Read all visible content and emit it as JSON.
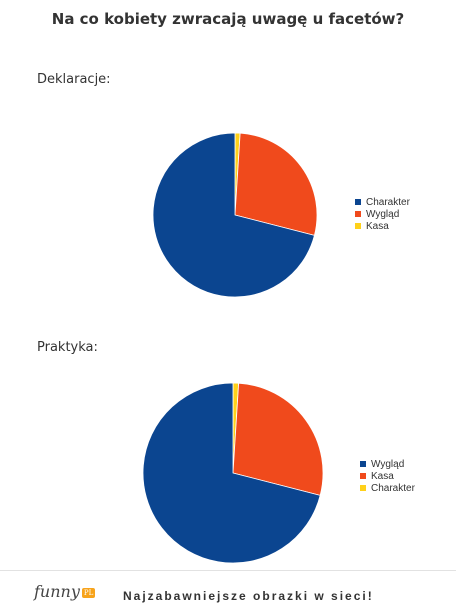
{
  "title": "Na co kobiety zwracają uwagę u facetów?",
  "colors": {
    "blue": "#0b4590",
    "orange": "#f04a1c",
    "yellow": "#ffd11a"
  },
  "chart_data": [
    {
      "type": "pie",
      "title": "Deklaracje:",
      "categories": [
        "Charakter",
        "Wygląd",
        "Kasa"
      ],
      "values": [
        71,
        28,
        1
      ],
      "colors": [
        "#0b4590",
        "#f04a1c",
        "#ffd11a"
      ],
      "legend": "right"
    },
    {
      "type": "pie",
      "title": "Praktyka:",
      "categories": [
        "Wygląd",
        "Kasa",
        "Charakter"
      ],
      "values": [
        71,
        28,
        1
      ],
      "colors": [
        "#0b4590",
        "#f04a1c",
        "#ffd11a"
      ],
      "legend": "right"
    }
  ],
  "footer": {
    "logo_text": "funny",
    "logo_badge": "PL",
    "slogan": "Najzabawniejsze obrazki w sieci!"
  }
}
